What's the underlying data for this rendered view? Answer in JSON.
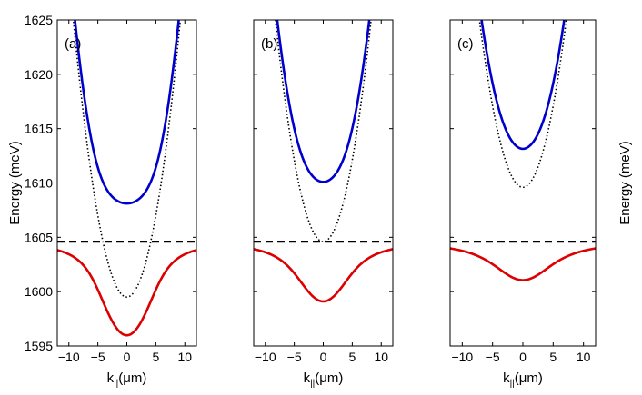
{
  "chart_data": [
    {
      "type": "line",
      "panel_label": "(a)",
      "xlabel": "k",
      "xlabel_sub": "||",
      "xlabel_unit": "(μm)",
      "ylabel": "Energy (meV)",
      "xlim": [
        -12,
        12
      ],
      "ylim": [
        1595,
        1625
      ],
      "xticks": [
        "−10",
        "−5",
        "0",
        "5",
        "10"
      ],
      "yticks": [
        "1595",
        "1600",
        "1605",
        "1610",
        "1615",
        "1620",
        "1625"
      ],
      "exciton_energy": 1604.6,
      "bare_cavity_min": 1599.5,
      "upper_polariton_min": 1608.1,
      "lower_polariton_min": 1596.1,
      "series": [
        {
          "name": "upper polariton",
          "color": "#0000cc",
          "style": "solid"
        },
        {
          "name": "lower polariton",
          "color": "#dd0000",
          "style": "solid"
        },
        {
          "name": "bare cavity",
          "color": "#000000",
          "style": "dotted"
        },
        {
          "name": "exciton",
          "color": "#000000",
          "style": "dashed"
        }
      ]
    },
    {
      "type": "line",
      "panel_label": "(b)",
      "xlabel": "k",
      "xlabel_sub": "||",
      "xlabel_unit": "(μm)",
      "xlim": [
        -12,
        12
      ],
      "ylim": [
        1595,
        1625
      ],
      "xticks": [
        "−10",
        "−5",
        "0",
        "5",
        "10"
      ],
      "exciton_energy": 1604.6,
      "bare_cavity_min": 1604.6,
      "upper_polariton_min": 1610.0,
      "lower_polariton_min": 1599.2,
      "series": [
        {
          "name": "upper polariton",
          "color": "#0000cc",
          "style": "solid"
        },
        {
          "name": "lower polariton",
          "color": "#dd0000",
          "style": "solid"
        },
        {
          "name": "bare cavity",
          "color": "#000000",
          "style": "dotted"
        },
        {
          "name": "exciton",
          "color": "#000000",
          "style": "dashed"
        }
      ]
    },
    {
      "type": "line",
      "panel_label": "(c)",
      "xlabel": "k",
      "xlabel_sub": "||",
      "xlabel_unit": "(μm)",
      "ylabel": "Energy (meV)",
      "xlim": [
        -12,
        12
      ],
      "ylim": [
        1595,
        1625
      ],
      "xticks": [
        "−10",
        "−5",
        "0",
        "5",
        "10"
      ],
      "exciton_energy": 1604.6,
      "bare_cavity_min": 1609.6,
      "upper_polariton_min": 1613.1,
      "lower_polariton_min": 1601.1,
      "series": [
        {
          "name": "upper polariton",
          "color": "#0000cc",
          "style": "solid"
        },
        {
          "name": "lower polariton",
          "color": "#dd0000",
          "style": "solid"
        },
        {
          "name": "bare cavity",
          "color": "#000000",
          "style": "dotted"
        },
        {
          "name": "exciton",
          "color": "#000000",
          "style": "dashed"
        }
      ]
    }
  ]
}
